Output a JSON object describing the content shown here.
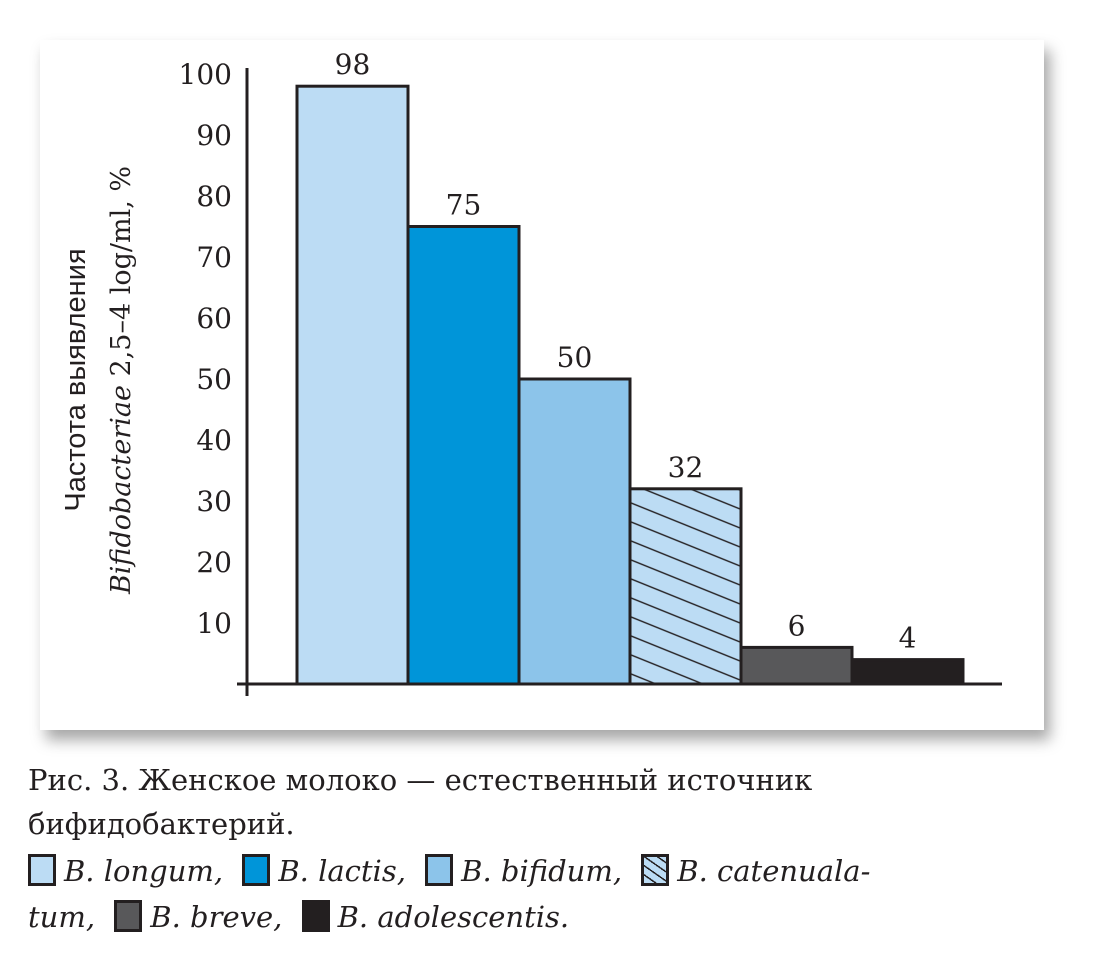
{
  "chart_data": {
    "type": "bar",
    "categories": [
      "B. longum",
      "B. lactis",
      "B. bifidum",
      "B. catenualatum",
      "B. breve",
      "B. adolescentis"
    ],
    "values": [
      98,
      75,
      50,
      32,
      6,
      4
    ],
    "colors": [
      "#bcdcf4",
      "#0095d9",
      "#8cc4ea",
      "#bcdcf4",
      "#58585a",
      "#231f20"
    ],
    "hatched": [
      false,
      false,
      false,
      true,
      false,
      false
    ],
    "ylabel_line1": "Частота выявления",
    "ylabel_line2_italic": "Bifidobacteriae",
    "ylabel_line2_rest": " 2,5–4 log/ml, %",
    "yticks": [
      10,
      20,
      30,
      40,
      50,
      60,
      70,
      80,
      90,
      100
    ],
    "ylim": [
      0,
      100
    ],
    "grid": false
  },
  "caption": {
    "line1": "Рис. 3. Женское молоко — естественный источник",
    "line2": "бифидобактерий."
  },
  "legend": {
    "items": [
      {
        "label": "B. longum,"
      },
      {
        "label": "B. lactis,"
      },
      {
        "label": "B. bifidum,"
      },
      {
        "label": "B. catenuala-"
      },
      {
        "label": "tum,"
      },
      {
        "label": "B. breve,"
      },
      {
        "label": "B. adolescentis."
      }
    ]
  }
}
